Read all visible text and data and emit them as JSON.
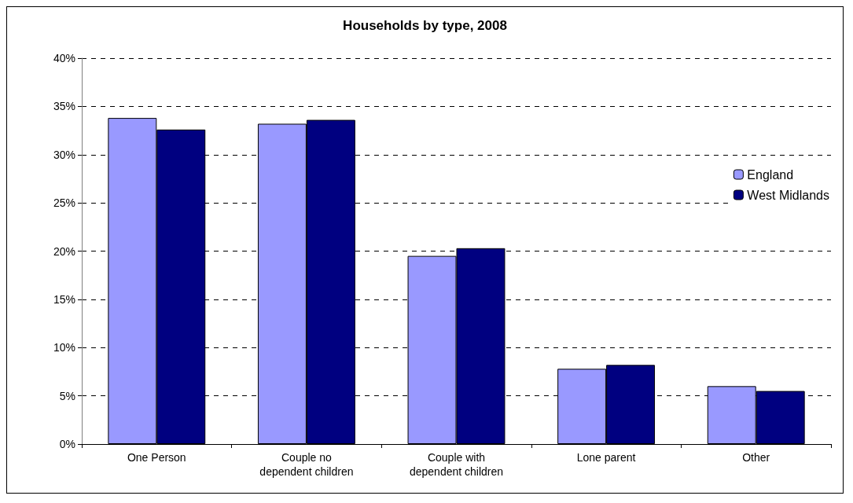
{
  "chart_data": {
    "type": "bar",
    "title": "Households by type, 2008",
    "categories": [
      "One Person",
      "Couple no\ndependent children",
      "Couple with\ndependent children",
      "Lone parent",
      "Other"
    ],
    "series": [
      {
        "name": "England",
        "color": "#9999ff",
        "values": [
          33.8,
          33.2,
          19.5,
          7.8,
          6.0
        ]
      },
      {
        "name": "West Midlands",
        "color": "#000080",
        "values": [
          32.6,
          33.6,
          20.3,
          8.2,
          5.5
        ]
      }
    ],
    "ylim": [
      0,
      40
    ],
    "yticks": [
      {
        "value": 0,
        "label": "0%"
      },
      {
        "value": 5,
        "label": "5%"
      },
      {
        "value": 10,
        "label": "10%"
      },
      {
        "value": 15,
        "label": "15%"
      },
      {
        "value": 20,
        "label": "20%"
      },
      {
        "value": 25,
        "label": "25%"
      },
      {
        "value": 30,
        "label": "30%"
      },
      {
        "value": 35,
        "label": "35%"
      },
      {
        "value": 40,
        "label": "40%"
      }
    ],
    "grid": "y",
    "legend": "right"
  }
}
